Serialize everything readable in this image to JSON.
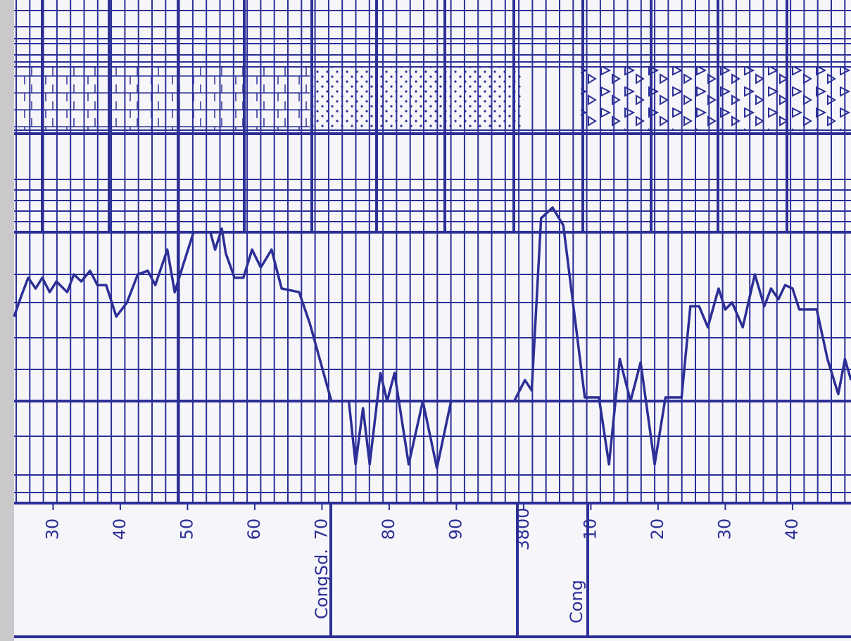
{
  "chart_data": {
    "type": "line",
    "x": [
      3724.2,
      3725.3,
      3726.3,
      3727.4,
      3728.4,
      3729.5,
      3730.5,
      3732.1,
      3733.1,
      3734.2,
      3735.5,
      3736.6,
      3737.9,
      3739.4,
      3741.0,
      3742.6,
      3744.1,
      3745.2,
      3747.0,
      3748.1,
      3749.4,
      3750.9,
      3753.4,
      3754.1,
      3755.1,
      3755.7,
      3757.0,
      3758.3,
      3759.6,
      3760.9,
      3762.5,
      3764.0,
      3766.6,
      3768.2,
      3771.4,
      3774.0,
      3775.0,
      3776.1,
      3777.1,
      3778.7,
      3779.7,
      3780.8,
      3782.9,
      3785.0,
      3787.1,
      3789.2,
      3798.6,
      3800.2,
      3801.2,
      3802.6,
      3804.3,
      3805.9,
      3809.1,
      3811.2,
      3812.7,
      3814.3,
      3815.9,
      3817.4,
      3819.5,
      3821.1,
      3823.5,
      3824.8,
      3826.1,
      3827.4,
      3829.0,
      3830.0,
      3831.0,
      3832.6,
      3834.4,
      3835.8,
      3836.8,
      3837.9,
      3838.9,
      3840.0,
      3841.0,
      3843.6,
      3845.2,
      3846.8,
      3847.8,
      3848.7
    ],
    "series": [
      {
        "color": "#2c2f96",
        "values": [
          5.05,
          5.62,
          6.1,
          5.81,
          6.1,
          5.71,
          6.0,
          5.71,
          6.19,
          6.0,
          6.29,
          5.9,
          5.9,
          5.05,
          5.43,
          6.19,
          6.29,
          5.9,
          6.86,
          5.71,
          6.48,
          7.33,
          7.33,
          6.86,
          7.43,
          6.76,
          6.1,
          6.1,
          6.86,
          6.38,
          6.86,
          5.81,
          5.71,
          4.86,
          2.76,
          2.76,
          1.05,
          2.57,
          1.05,
          3.52,
          2.76,
          3.52,
          1.05,
          2.76,
          0.95,
          2.76,
          2.76,
          3.33,
          3.05,
          7.71,
          8.0,
          7.52,
          2.86,
          2.86,
          1.05,
          3.9,
          2.76,
          3.81,
          1.05,
          2.86,
          2.86,
          5.33,
          5.33,
          4.76,
          5.81,
          5.24,
          5.43,
          4.76,
          6.19,
          5.33,
          5.81,
          5.52,
          5.9,
          5.81,
          5.24,
          5.24,
          3.9,
          2.95,
          3.9,
          3.33
        ]
      }
    ],
    "xlim": [
      3724.2,
      3848.7
    ],
    "ylim": [
      0,
      10
    ],
    "xticks": [
      {
        "value": 3730,
        "label": "30"
      },
      {
        "value": 3740,
        "label": "40"
      },
      {
        "value": 3750,
        "label": "50"
      },
      {
        "value": 3760,
        "label": "60"
      },
      {
        "value": 3770,
        "label": "70"
      },
      {
        "value": 3780,
        "label": "80"
      },
      {
        "value": 3790,
        "label": "90"
      },
      3800,
      {
        "value": 3810,
        "label": "10"
      },
      {
        "value": 3820,
        "label": "20"
      },
      {
        "value": 3830,
        "label": "30"
      },
      {
        "value": 3840,
        "label": "40"
      }
    ],
    "annotations": [
      "CongSd.",
      "Cong"
    ]
  }
}
